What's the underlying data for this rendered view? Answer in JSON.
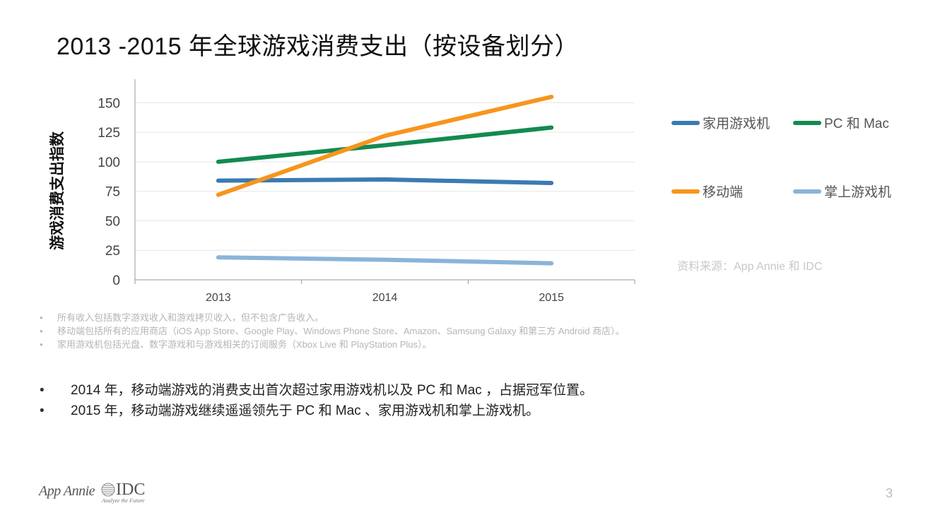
{
  "title": "2013 -2015 年全球游戏消费支出（按设备划分）",
  "chart_data": {
    "type": "line",
    "categories": [
      "2013",
      "2014",
      "2015"
    ],
    "ylabel": "游戏消费支出指数",
    "ylim": [
      0,
      170
    ],
    "yticks": [
      0,
      25,
      50,
      75,
      100,
      125,
      150
    ],
    "grid": true,
    "legend_position": "right",
    "series": [
      {
        "name": "家用游戏机",
        "color": "#3c7ab1",
        "values": [
          84,
          85,
          82
        ]
      },
      {
        "name": "PC 和 Mac",
        "color": "#138a50",
        "values": [
          100,
          114,
          129
        ]
      },
      {
        "name": "移动端",
        "color": "#f7951d",
        "values": [
          72,
          122,
          155
        ]
      },
      {
        "name": "掌上游戏机",
        "color": "#8ab4d9",
        "values": [
          19,
          17,
          14
        ]
      }
    ]
  },
  "source_note": "资料来源：App Annie 和 IDC",
  "footnotes": [
    "所有收入包括数字游戏收入和游戏拷贝收入，但不包含广告收入。",
    "移动端包括所有的应用商店（iOS App Store、Google Play、Windows Phone Store、Amazon、Samsung Galaxy 和第三方 Android 商店）。",
    "家用游戏机包括光盘、数字游戏和与游戏相关的订阅服务（Xbox Live 和 PlayStation Plus）。"
  ],
  "bullets": [
    "2014 年，移动端游戏的消费支出首次超过家用游戏机以及 PC 和 Mac ，占据冠军位置。",
    "2015 年，移动端游戏继续遥遥领先于 PC 和 Mac 、家用游戏机和掌上游戏机。"
  ],
  "footer": {
    "logo_appannie": "App Annie",
    "logo_idc": "IDC",
    "logo_idc_tagline": "Analyze the Future",
    "page_number": "3"
  }
}
